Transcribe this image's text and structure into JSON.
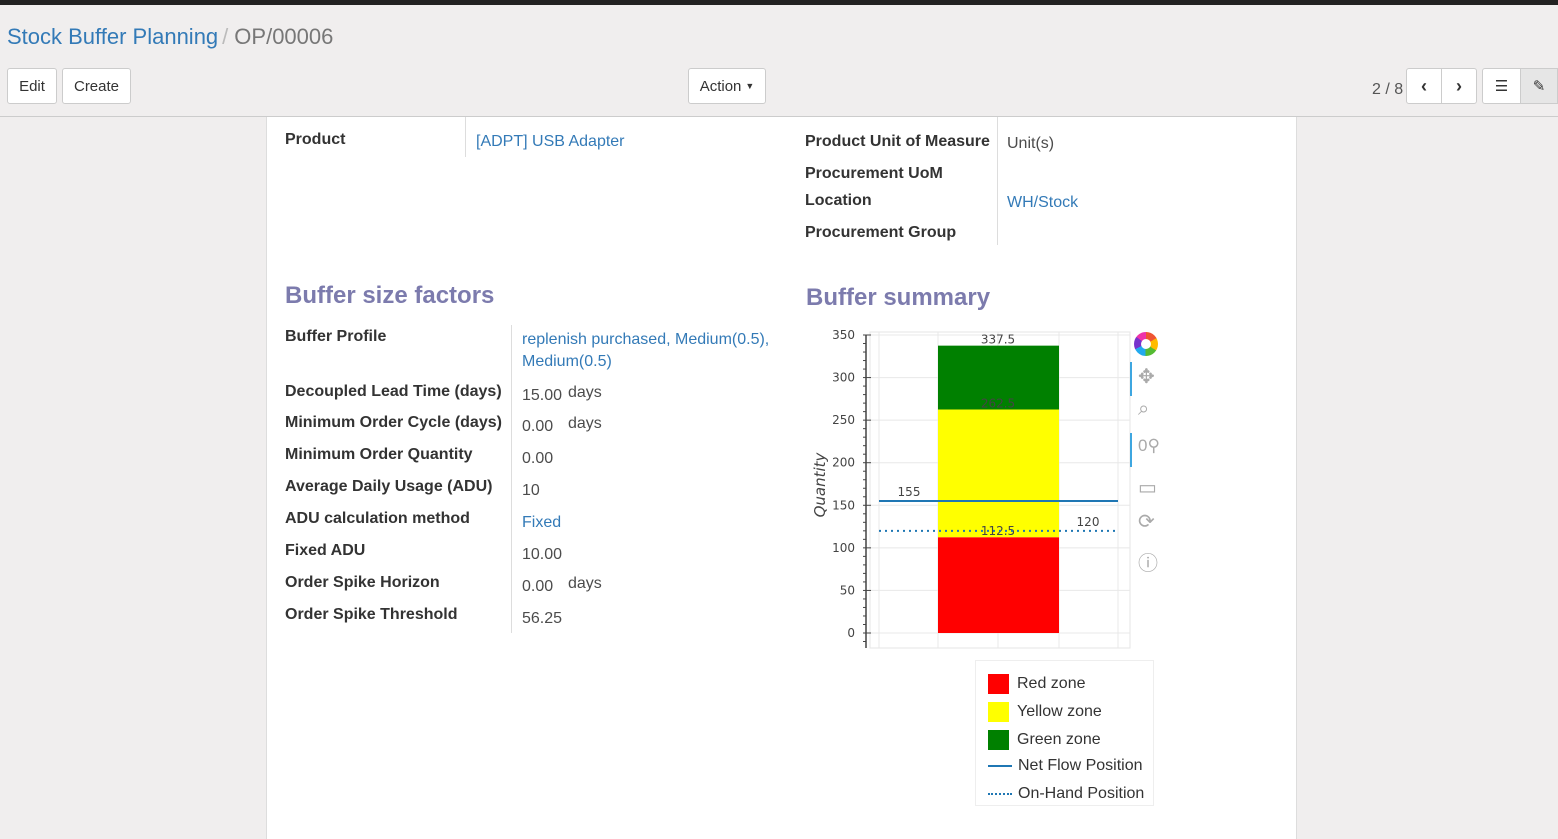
{
  "breadcrumb": {
    "parent": "Stock Buffer Planning",
    "current": "OP/00006"
  },
  "buttons": {
    "edit": "Edit",
    "create": "Create",
    "action": "Action"
  },
  "pager": {
    "value": "2 / 8"
  },
  "fields": {
    "product_label": "Product",
    "product_value": "[ADPT] USB Adapter",
    "uom_label": "Product Unit of Measure",
    "uom_value": "Unit(s)",
    "proc_uom_label": "Procurement UoM",
    "location_label": "Location",
    "location_value": "WH/Stock",
    "proc_group_label": "Procurement Group"
  },
  "factors": {
    "title": "Buffer size factors",
    "rows": [
      {
        "label": "Buffer Profile",
        "value": "replenish purchased, Medium(0.5),",
        "value2": "Medium(0.5)"
      },
      {
        "label": "Decoupled Lead Time (days)",
        "value": "15.00",
        "unit": "days"
      },
      {
        "label": "Minimum Order Cycle (days)",
        "value": "0.00",
        "unit": "days"
      },
      {
        "label": "Minimum Order Quantity",
        "value": "0.00"
      },
      {
        "label": "Average Daily Usage (ADU)",
        "value": "10"
      },
      {
        "label": "ADU calculation method",
        "value": "Fixed"
      },
      {
        "label": "Fixed ADU",
        "value": "10.00"
      },
      {
        "label": "Order Spike Horizon",
        "value": "0.00",
        "unit": "days"
      },
      {
        "label": "Order Spike Threshold",
        "value": "56.25"
      }
    ]
  },
  "summary": {
    "title": "Buffer summary"
  },
  "chart_data": {
    "type": "bar",
    "ylabel": "Quantity",
    "ylim": [
      -15,
      355
    ],
    "yticks": [
      0,
      50,
      100,
      150,
      200,
      250,
      300,
      350
    ],
    "grid": true,
    "stacked_zones": [
      {
        "name": "Red zone",
        "from": 0,
        "to": 112.5,
        "color": "#ff0000"
      },
      {
        "name": "Yellow zone",
        "from": 112.5,
        "to": 262.5,
        "color": "#ffff00"
      },
      {
        "name": "Green zone",
        "from": 262.5,
        "to": 337.5,
        "color": "#008000"
      }
    ],
    "zone_labels": [
      "112.5",
      "262.5",
      "337.5"
    ],
    "lines": [
      {
        "name": "Net Flow Position",
        "value": 155,
        "label": "155",
        "style": "solid",
        "color": "#1f77b4"
      },
      {
        "name": "On-Hand Position",
        "value": 120,
        "label": "120",
        "style": "dotted",
        "color": "#1f77b4"
      }
    ],
    "legend_position": "bottom"
  },
  "legend": [
    "Red zone",
    "Yellow zone",
    "Green zone",
    "Net Flow Position",
    "On-Hand Position"
  ],
  "toolbar_icons": [
    "bokeh-logo-icon",
    "pan-icon",
    "box-zoom-icon",
    "wheel-zoom-icon",
    "save-icon",
    "reset-icon",
    "help-icon"
  ]
}
